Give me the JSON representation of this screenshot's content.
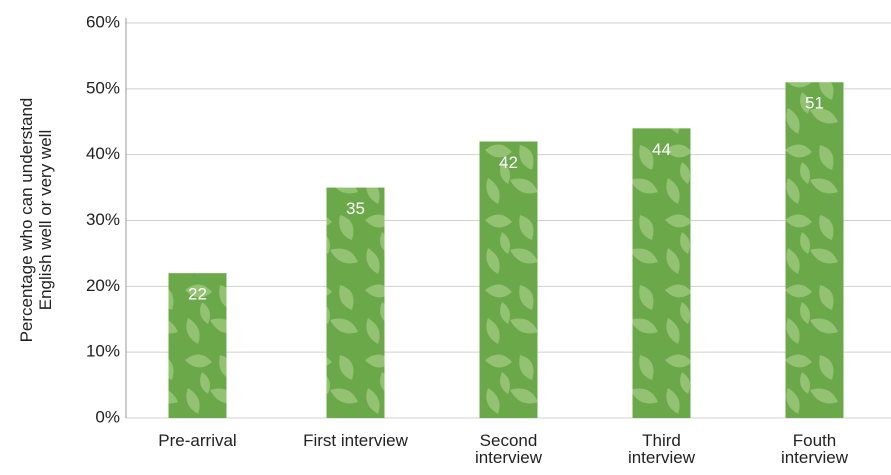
{
  "chart_data": {
    "type": "bar",
    "y_label": "Percentage who can understand English well or very well",
    "categories": [
      "Pre-arrival",
      "First interview",
      "Second interview",
      "Third interview",
      "Fouth interview"
    ],
    "values": [
      22,
      35,
      42,
      44,
      51
    ],
    "color": "#6aa84a",
    "ylim": [
      0,
      60
    ],
    "yticks": [
      {
        "value": 0,
        "label": "0%"
      },
      {
        "value": 10,
        "label": "10%"
      },
      {
        "value": 20,
        "label": "20%"
      },
      {
        "value": 30,
        "label": "30%"
      },
      {
        "value": 40,
        "label": "40%"
      },
      {
        "value": 50,
        "label": "50%"
      },
      {
        "value": 60,
        "label": "60%"
      }
    ],
    "grid": true
  }
}
